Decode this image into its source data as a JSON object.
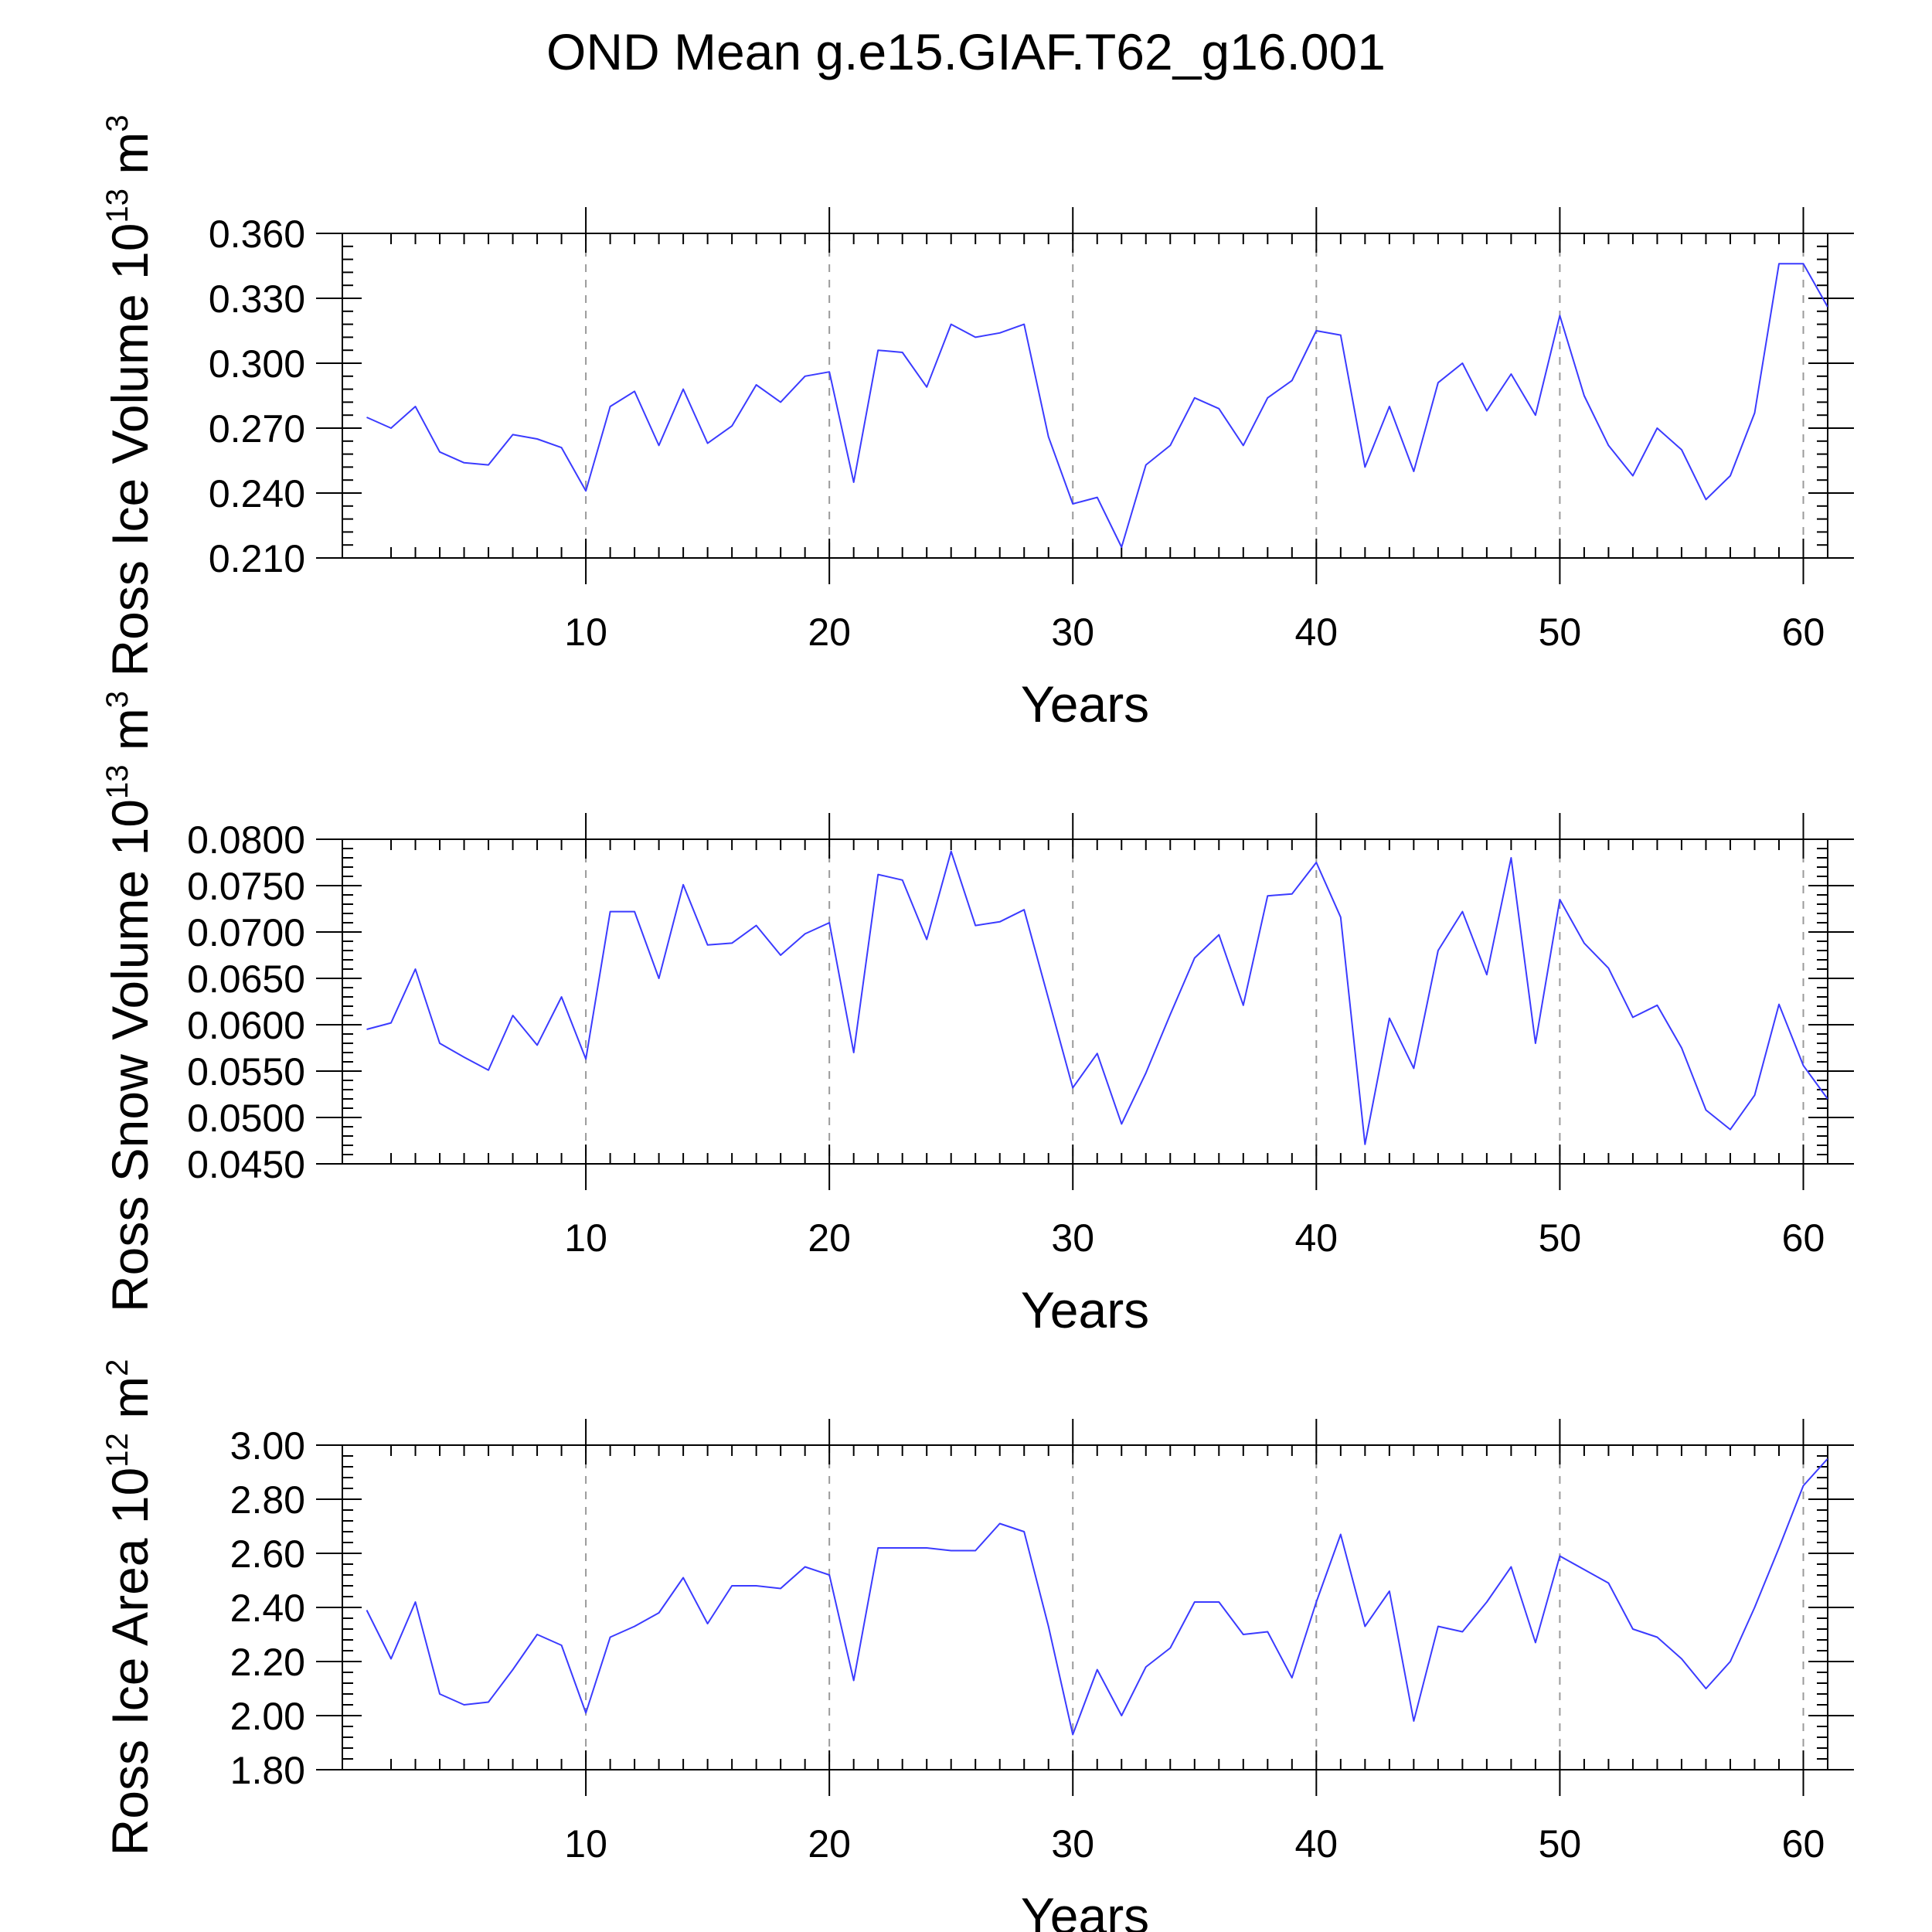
{
  "title": "OND Mean g.e15.GIAF.T62_g16.001",
  "colors": {
    "series": "#3b3bff",
    "grid": "#9a9a9a",
    "axis": "#000000"
  },
  "chart_data": [
    {
      "type": "line",
      "ylabel": "Ross Ice Volume",
      "yunit_base": "10",
      "yunit_exp": "13",
      "yunit_m": "m",
      "yunit_pow": "3",
      "xlabel": "Years",
      "xlim": [
        0,
        61
      ],
      "ylim": [
        0.21,
        0.36
      ],
      "yticks": [
        "0.210",
        "0.240",
        "0.270",
        "0.300",
        "0.330",
        "0.360"
      ],
      "ytick_values": [
        0.21,
        0.24,
        0.27,
        0.3,
        0.33,
        0.36
      ],
      "xticks": [
        "10",
        "20",
        "30",
        "40",
        "50",
        "60"
      ],
      "xtick_values": [
        10,
        20,
        30,
        40,
        50,
        60
      ],
      "x": [
        1,
        2,
        3,
        4,
        5,
        6,
        7,
        8,
        9,
        10,
        11,
        12,
        13,
        14,
        15,
        16,
        17,
        18,
        19,
        20,
        21,
        22,
        23,
        24,
        25,
        26,
        27,
        28,
        29,
        30,
        31,
        32,
        33,
        34,
        35,
        36,
        37,
        38,
        39,
        40,
        41,
        42,
        43,
        44,
        45,
        46,
        47,
        48,
        49,
        50,
        51,
        52,
        53,
        54,
        55,
        56,
        57,
        58,
        59,
        60,
        61
      ],
      "series": [
        {
          "name": "Ross Ice Volume",
          "values": [
            0.275,
            0.27,
            0.28,
            0.259,
            0.254,
            0.253,
            0.267,
            0.265,
            0.261,
            0.241,
            0.28,
            0.287,
            0.262,
            0.288,
            0.263,
            0.271,
            0.29,
            0.282,
            0.294,
            0.296,
            0.245,
            0.306,
            0.305,
            0.289,
            0.318,
            0.312,
            0.314,
            0.318,
            0.266,
            0.235,
            0.238,
            0.215,
            0.253,
            0.262,
            0.284,
            0.279,
            0.262,
            0.284,
            0.292,
            0.315,
            0.313,
            0.252,
            0.28,
            0.25,
            0.291,
            0.3,
            0.278,
            0.295,
            0.276,
            0.322,
            0.285,
            0.262,
            0.248,
            0.27,
            0.26,
            0.237,
            0.248,
            0.277,
            0.346,
            0.346,
            0.326
          ]
        }
      ]
    },
    {
      "type": "line",
      "ylabel": "Ross Snow Volume",
      "yunit_base": "10",
      "yunit_exp": "13",
      "yunit_m": "m",
      "yunit_pow": "3",
      "xlabel": "Years",
      "xlim": [
        0,
        61
      ],
      "ylim": [
        0.045,
        0.08
      ],
      "yticks": [
        "0.0450",
        "0.0500",
        "0.0550",
        "0.0600",
        "0.0650",
        "0.0700",
        "0.0750",
        "0.0800"
      ],
      "ytick_values": [
        0.045,
        0.05,
        0.055,
        0.06,
        0.065,
        0.07,
        0.075,
        0.08
      ],
      "xticks": [
        "10",
        "20",
        "30",
        "40",
        "50",
        "60"
      ],
      "xtick_values": [
        10,
        20,
        30,
        40,
        50,
        60
      ],
      "x": [
        1,
        2,
        3,
        4,
        5,
        6,
        7,
        8,
        9,
        10,
        11,
        12,
        13,
        14,
        15,
        16,
        17,
        18,
        19,
        20,
        21,
        22,
        23,
        24,
        25,
        26,
        27,
        28,
        29,
        30,
        31,
        32,
        33,
        34,
        35,
        36,
        37,
        38,
        39,
        40,
        41,
        42,
        43,
        44,
        45,
        46,
        47,
        48,
        49,
        50,
        51,
        52,
        53,
        54,
        55,
        56,
        57,
        58,
        59,
        60,
        61
      ],
      "series": [
        {
          "name": "Ross Snow Volume",
          "values": [
            0.0595,
            0.0602,
            0.066,
            0.058,
            0.0565,
            0.0551,
            0.061,
            0.0578,
            0.063,
            0.0563,
            0.0722,
            0.0722,
            0.065,
            0.0751,
            0.0686,
            0.0688,
            0.0707,
            0.0675,
            0.0698,
            0.071,
            0.057,
            0.0762,
            0.0756,
            0.0692,
            0.0787,
            0.0707,
            0.0711,
            0.0724,
            0.0628,
            0.0532,
            0.0569,
            0.0493,
            0.0548,
            0.0611,
            0.0672,
            0.0697,
            0.0621,
            0.0739,
            0.0741,
            0.0775,
            0.0716,
            0.0471,
            0.0607,
            0.0553,
            0.068,
            0.0722,
            0.0654,
            0.078,
            0.058,
            0.0735,
            0.0688,
            0.0661,
            0.0608,
            0.0621,
            0.0575,
            0.0508,
            0.0487,
            0.0524,
            0.0622,
            0.0556,
            0.052
          ]
        }
      ]
    },
    {
      "type": "line",
      "ylabel": "Ross Ice Area",
      "yunit_base": "10",
      "yunit_exp": "12",
      "yunit_m": "m",
      "yunit_pow": "2",
      "xlabel": "Years",
      "xlim": [
        0,
        61
      ],
      "ylim": [
        1.8,
        3.0
      ],
      "yticks": [
        "1.80",
        "2.00",
        "2.20",
        "2.40",
        "2.60",
        "2.80",
        "3.00"
      ],
      "ytick_values": [
        1.8,
        2.0,
        2.2,
        2.4,
        2.6,
        2.8,
        3.0
      ],
      "xticks": [
        "10",
        "20",
        "30",
        "40",
        "50",
        "60"
      ],
      "xtick_values": [
        10,
        20,
        30,
        40,
        50,
        60
      ],
      "x": [
        1,
        2,
        3,
        4,
        5,
        6,
        7,
        8,
        9,
        10,
        11,
        12,
        13,
        14,
        15,
        16,
        17,
        18,
        19,
        20,
        21,
        22,
        23,
        24,
        25,
        26,
        27,
        28,
        29,
        30,
        31,
        32,
        33,
        34,
        35,
        36,
        37,
        38,
        39,
        40,
        41,
        42,
        43,
        44,
        45,
        46,
        47,
        48,
        49,
        50,
        51,
        52,
        53,
        54,
        55,
        56,
        57,
        58,
        59,
        60,
        61
      ],
      "series": [
        {
          "name": "Ross Ice Area",
          "values": [
            2.39,
            2.21,
            2.42,
            2.08,
            2.04,
            2.05,
            2.17,
            2.3,
            2.26,
            2.01,
            2.29,
            2.33,
            2.38,
            2.51,
            2.34,
            2.48,
            2.48,
            2.47,
            2.55,
            2.52,
            2.13,
            2.62,
            2.62,
            2.62,
            2.61,
            2.61,
            2.71,
            2.68,
            2.33,
            1.93,
            2.17,
            2.0,
            2.18,
            2.25,
            2.42,
            2.42,
            2.3,
            2.31,
            2.14,
            2.42,
            2.67,
            2.33,
            2.46,
            1.98,
            2.33,
            2.31,
            2.42,
            2.55,
            2.27,
            2.59,
            2.54,
            2.49,
            2.32,
            2.29,
            2.21,
            2.1,
            2.2,
            2.4,
            2.62,
            2.85,
            2.95
          ]
        }
      ]
    }
  ]
}
